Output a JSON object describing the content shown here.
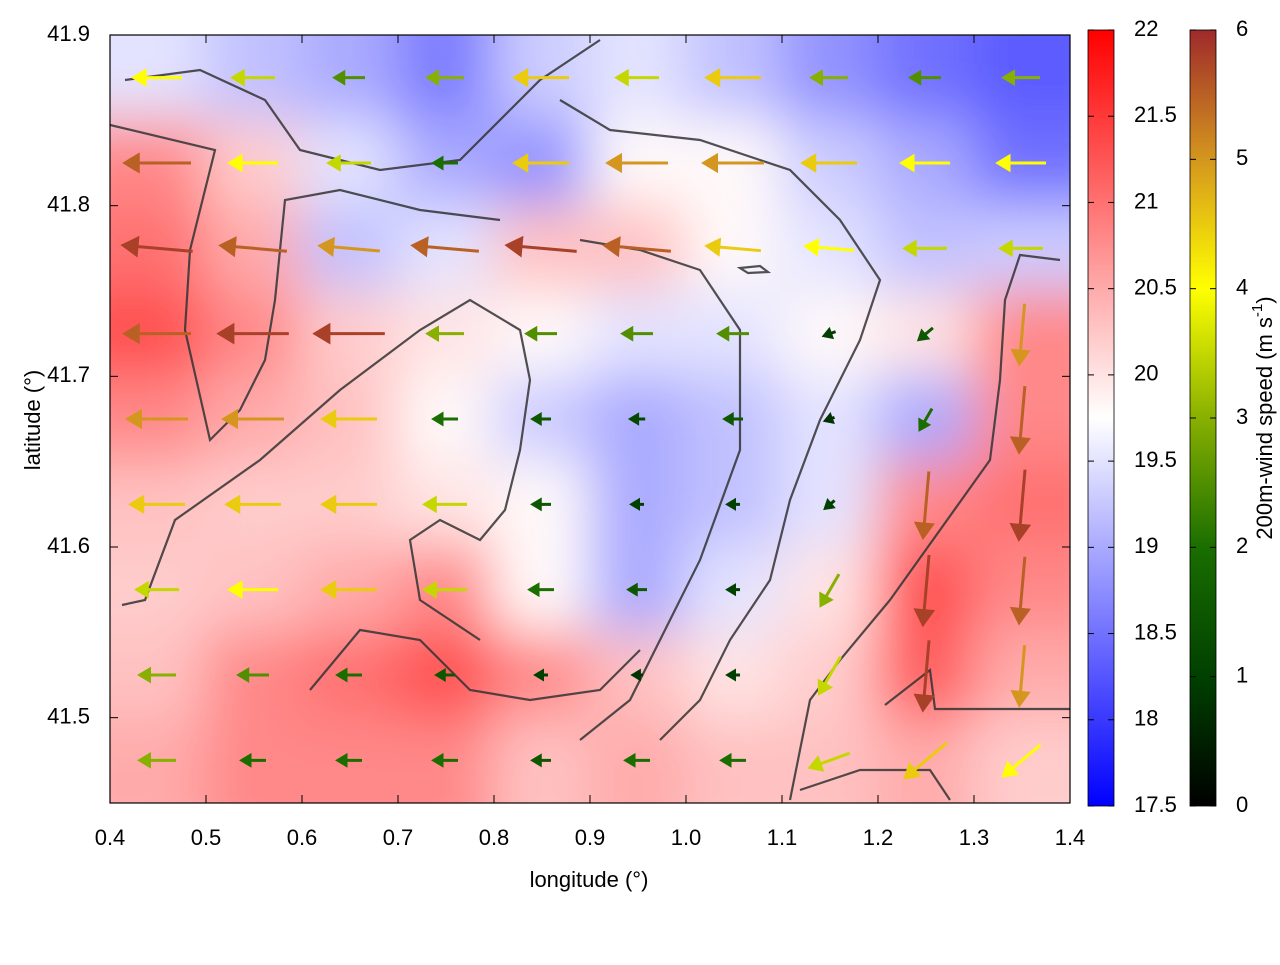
{
  "chart_data": {
    "type": "heatmap",
    "xlabel": "longitude (°)",
    "ylabel": "latitude (°)",
    "xlim": [
      0.4,
      1.4
    ],
    "ylim": [
      41.45,
      41.9
    ],
    "xticks": [
      0.4,
      0.5,
      0.6,
      0.7,
      0.8,
      0.9,
      {
        "value": 1,
        "label": "1.0"
      },
      1.1,
      1.2,
      1.3,
      1.4
    ],
    "yticks": [
      41.5,
      41.6,
      41.7,
      41.8,
      41.9
    ],
    "x": [
      0.45,
      0.55,
      0.65,
      0.75,
      0.85,
      0.95,
      1.05,
      1.15,
      1.25,
      1.35
    ],
    "y": [
      41.875,
      41.825,
      41.775,
      41.725,
      41.675,
      41.625,
      41.575,
      41.525,
      41.475
    ],
    "temperature": [
      [
        19.5,
        19.2,
        19.0,
        18.6,
        19.3,
        19.5,
        19.2,
        18.8,
        18.5,
        18.3
      ],
      [
        20.8,
        20.2,
        19.5,
        19.0,
        18.8,
        19.8,
        19.8,
        19.3,
        19.0,
        18.5
      ],
      [
        21.0,
        20.5,
        19.2,
        19.5,
        20.3,
        20.3,
        19.8,
        19.5,
        19.2,
        19.3
      ],
      [
        21.3,
        20.8,
        20.2,
        20.0,
        19.8,
        19.5,
        19.5,
        19.8,
        20.0,
        20.8
      ],
      [
        20.8,
        20.5,
        20.3,
        19.8,
        19.3,
        19.0,
        19.2,
        19.5,
        19.0,
        20.8
      ],
      [
        20.3,
        20.2,
        20.2,
        20.0,
        19.8,
        19.0,
        19.2,
        19.5,
        20.8,
        21.0
      ],
      [
        20.2,
        20.3,
        20.5,
        20.8,
        19.8,
        19.0,
        19.5,
        20.0,
        21.3,
        20.8
      ],
      [
        20.3,
        20.8,
        21.0,
        21.3,
        20.8,
        20.3,
        20.0,
        20.2,
        21.2,
        20.5
      ],
      [
        20.5,
        20.8,
        20.8,
        20.8,
        20.3,
        20.5,
        20.3,
        20.3,
        20.5,
        20.2
      ]
    ],
    "wind_speed": [
      [
        4,
        3.5,
        2.5,
        3,
        4.5,
        3.5,
        4.5,
        3,
        2.5,
        3
      ],
      [
        5.5,
        4,
        3.5,
        2,
        4.5,
        5,
        5,
        4.5,
        4,
        4
      ],
      [
        5.8,
        5.5,
        5,
        5.5,
        5.8,
        5.5,
        4.5,
        4,
        3.5,
        3.5
      ],
      [
        5.5,
        5.8,
        5.8,
        3,
        2.5,
        2.5,
        2.5,
        1,
        1.5,
        5
      ],
      [
        5,
        5,
        4.5,
        2,
        1.5,
        1.2,
        1.5,
        0.8,
        2,
        5.5
      ],
      [
        4.5,
        4.5,
        4.5,
        3.5,
        1.5,
        1,
        1,
        1,
        5.5,
        5.8
      ],
      [
        3.5,
        4,
        4.5,
        3.5,
        2,
        1.5,
        1,
        3,
        5.8,
        5.5
      ],
      [
        3,
        2.5,
        2,
        1.5,
        1,
        0.8,
        1,
        3.5,
        5.8,
        5
      ],
      [
        3,
        2,
        2,
        2,
        1.5,
        2,
        2,
        3.5,
        4.5,
        4
      ]
    ],
    "wind_direction": [
      [
        180,
        180,
        180,
        180,
        180,
        180,
        180,
        180,
        180,
        180
      ],
      [
        180,
        180,
        180,
        180,
        180,
        180,
        180,
        180,
        180,
        180
      ],
      [
        175,
        175,
        175,
        175,
        175,
        175,
        175,
        175,
        180,
        180
      ],
      [
        180,
        180,
        180,
        180,
        180,
        180,
        180,
        200,
        220,
        265
      ],
      [
        180,
        180,
        180,
        180,
        180,
        180,
        180,
        200,
        240,
        265
      ],
      [
        180,
        180,
        180,
        180,
        180,
        180,
        180,
        220,
        265,
        265
      ],
      [
        180,
        180,
        180,
        180,
        180,
        180,
        180,
        240,
        265,
        265
      ],
      [
        180,
        180,
        180,
        180,
        180,
        180,
        180,
        240,
        265,
        265
      ],
      [
        180,
        180,
        180,
        180,
        180,
        180,
        180,
        200,
        220,
        220
      ]
    ],
    "colorbar": {
      "lim": [
        17.5,
        22
      ],
      "ticks": [
        17.5,
        18,
        18.5,
        19,
        19.5,
        20,
        20.5,
        21,
        21.5,
        22
      ],
      "colors": [
        "#0000ff",
        "#ffffff",
        "#ff0000"
      ]
    },
    "colorbar2": {
      "label": "200m-wind speed (m s",
      "label_sup": "-1",
      "label_end": ")",
      "lim": [
        0,
        6
      ],
      "ticks": [
        0,
        1,
        2,
        3,
        4,
        5,
        6
      ],
      "colors": [
        "#000000",
        "#004000",
        "#1a6e00",
        "#88b000",
        "#ffff00",
        "#d4961e",
        "#9e2a2b"
      ]
    }
  }
}
